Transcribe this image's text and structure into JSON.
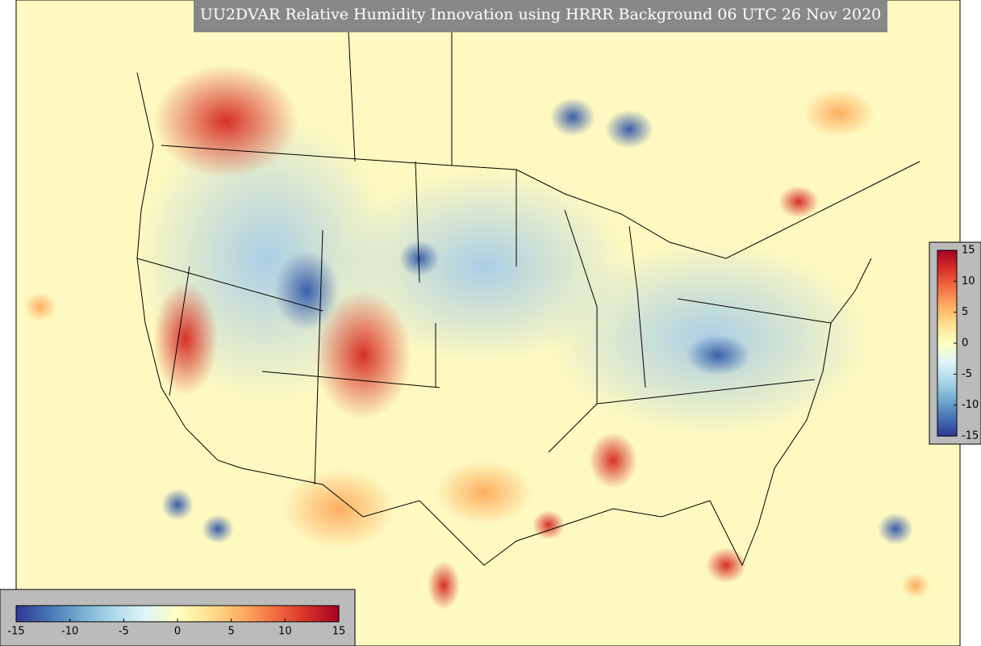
{
  "title": "UU2DVAR Relative Humidity Innovation using HRRR Background 06 UTC 26 Nov 2020",
  "colorbars": [
    {
      "orientation": "horizontal",
      "range": [
        -15,
        15
      ],
      "ticks": [
        -15,
        -10,
        -5,
        0,
        5,
        10,
        15
      ],
      "colors": [
        "#313695",
        "#4575b4",
        "#74add1",
        "#abd9e9",
        "#e0f3f8",
        "#ffffbf",
        "#fee090",
        "#fdae61",
        "#f46d43",
        "#d73027",
        "#a50026"
      ]
    },
    {
      "orientation": "vertical",
      "range": [
        -15,
        15
      ],
      "ticks": [
        -15,
        -10,
        -5,
        0,
        5,
        10,
        15
      ],
      "colors": [
        "#313695",
        "#4575b4",
        "#74add1",
        "#abd9e9",
        "#e0f3f8",
        "#ffffbf",
        "#fee090",
        "#fdae61",
        "#f46d43",
        "#d73027",
        "#a50026"
      ]
    }
  ]
}
